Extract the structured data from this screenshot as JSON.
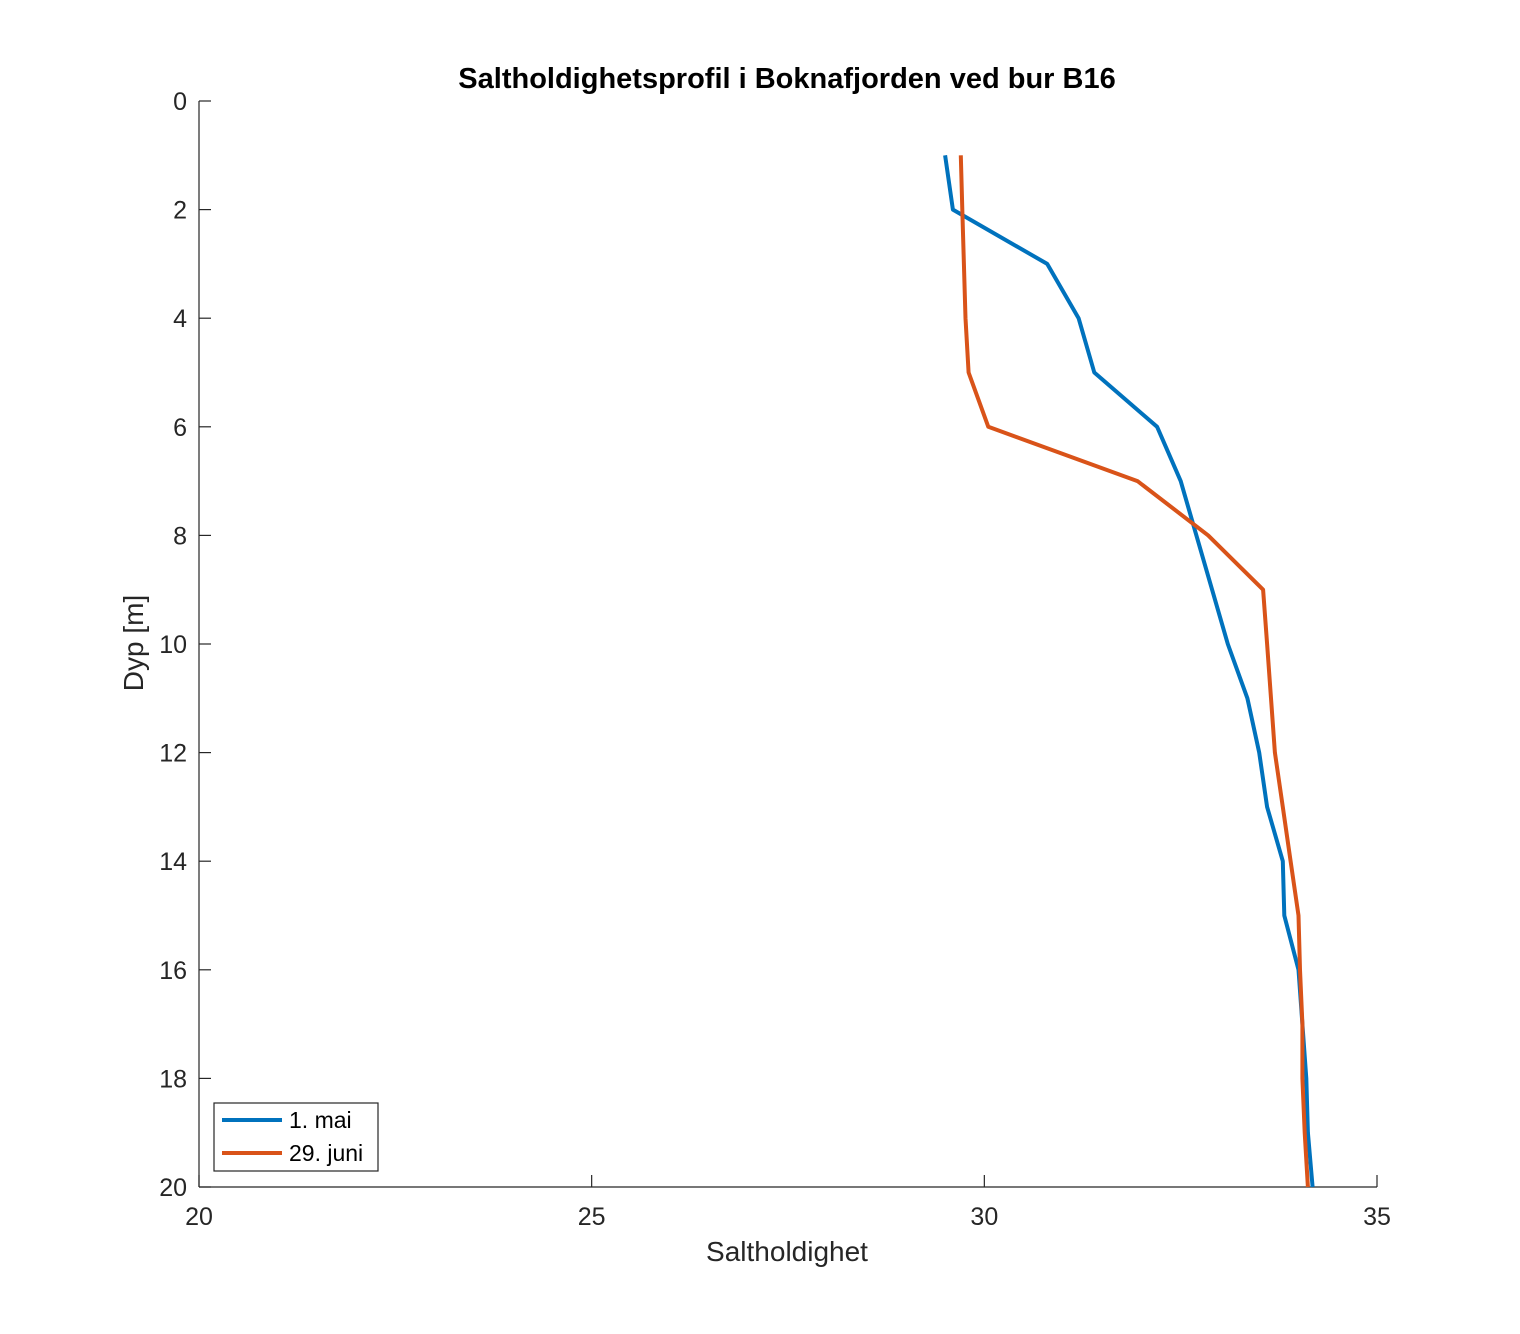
{
  "chart_data": {
    "type": "line",
    "title": "Saltholdighetsprofil i Boknafjorden ved bur B16",
    "xlabel": "Saltholdighet",
    "ylabel": "Dyp [m]",
    "xlim": [
      20,
      35
    ],
    "ylim": [
      0,
      20
    ],
    "y_reversed": true,
    "x_ticks": [
      20,
      25,
      30,
      35
    ],
    "y_ticks": [
      0,
      2,
      4,
      6,
      8,
      10,
      12,
      14,
      16,
      18,
      20
    ],
    "grid": false,
    "legend_position": "bottom-left",
    "series": [
      {
        "name": "1. mai",
        "color": "#0072BD",
        "points": [
          [
            29.5,
            1
          ],
          [
            29.6,
            2
          ],
          [
            30.8,
            3
          ],
          [
            31.2,
            4
          ],
          [
            31.4,
            5
          ],
          [
            32.2,
            6
          ],
          [
            32.5,
            7
          ],
          [
            32.7,
            8
          ],
          [
            32.9,
            9
          ],
          [
            33.1,
            10
          ],
          [
            33.35,
            11
          ],
          [
            33.5,
            12
          ],
          [
            33.6,
            13
          ],
          [
            33.8,
            14
          ],
          [
            33.82,
            15
          ],
          [
            34.0,
            16
          ],
          [
            34.05,
            17
          ],
          [
            34.1,
            18
          ],
          [
            34.12,
            19
          ],
          [
            34.18,
            20
          ]
        ]
      },
      {
        "name": "29. juni",
        "color": "#D95319",
        "points": [
          [
            29.7,
            1
          ],
          [
            29.72,
            2
          ],
          [
            29.74,
            3
          ],
          [
            29.76,
            4
          ],
          [
            29.8,
            5
          ],
          [
            30.05,
            6
          ],
          [
            31.95,
            7
          ],
          [
            32.85,
            8
          ],
          [
            33.55,
            9
          ],
          [
            33.6,
            10
          ],
          [
            33.65,
            11
          ],
          [
            33.7,
            12
          ],
          [
            33.8,
            13
          ],
          [
            33.9,
            14
          ],
          [
            34.0,
            15
          ],
          [
            34.02,
            16
          ],
          [
            34.05,
            17
          ],
          [
            34.05,
            18
          ],
          [
            34.08,
            19
          ],
          [
            34.12,
            20
          ]
        ]
      }
    ]
  }
}
